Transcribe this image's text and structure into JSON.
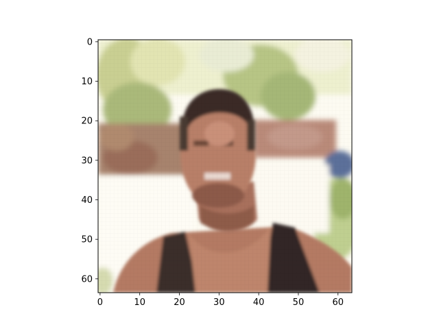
{
  "figure": {
    "background": "#ffffff",
    "image_description_icon": "pixelated-portrait-icon",
    "xticks": [
      "0",
      "10",
      "20",
      "30",
      "40",
      "50",
      "60"
    ],
    "yticks": [
      "0",
      "10",
      "20",
      "30",
      "40",
      "50",
      "60"
    ],
    "xlim": [
      -0.5,
      63.5
    ],
    "ylim": [
      63.5,
      -0.5
    ],
    "tick_values": [
      0,
      10,
      20,
      30,
      40,
      50,
      60
    ],
    "colors": {
      "sky_bright": "#fdfbf2",
      "foliage_light": "#e3e5b4",
      "foliage_mid": "#b6c47f",
      "foliage_dark": "#7d8e54",
      "brick": "#a86d5a",
      "hair": "#3b2a24",
      "skin": "#b98068",
      "skin_shadow": "#8c5a46",
      "tank_top": "#352a2a",
      "blue_accent": "#5b6f9a"
    }
  }
}
